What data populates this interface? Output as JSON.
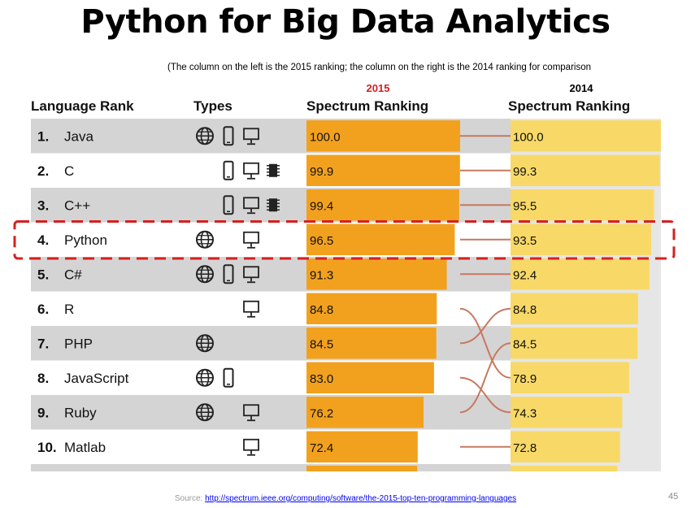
{
  "title": "Python for Big Data Analytics",
  "note": "(The column on the left is the 2015 ranking; the column on the right is the 2014 ranking for comparison",
  "source_label": "Source:",
  "source_url": "http://spectrum.ieee.org/computing/software/the-2015-top-ten-programming-languages",
  "page_number": "45",
  "chart_data": {
    "type": "bar",
    "headers": {
      "language": "Language Rank",
      "types": "Types",
      "col2015_year": "2015",
      "col2015": "Spectrum Ranking",
      "col2014_year": "2014",
      "col2014": "Spectrum Ranking"
    },
    "rows": [
      {
        "rank": "1.",
        "language": "Java",
        "types": [
          "web",
          "mobile",
          "desktop"
        ],
        "v2015": 100.0,
        "v2014": 100.0,
        "label2015": "100.0",
        "label2014": "100.0",
        "rank2014": 1
      },
      {
        "rank": "2.",
        "language": "C",
        "types": [
          "mobile",
          "desktop",
          "embedded"
        ],
        "v2015": 99.9,
        "v2014": 99.3,
        "label2015": "99.9",
        "label2014": "99.3",
        "rank2014": 2
      },
      {
        "rank": "3.",
        "language": "C++",
        "types": [
          "mobile",
          "desktop",
          "embedded"
        ],
        "v2015": 99.4,
        "v2014": 95.5,
        "label2015": "99.4",
        "label2014": "95.5",
        "rank2014": 3
      },
      {
        "rank": "4.",
        "language": "Python",
        "types": [
          "web",
          "desktop"
        ],
        "v2015": 96.5,
        "v2014": 93.5,
        "label2015": "96.5",
        "label2014": "93.5",
        "rank2014": 4
      },
      {
        "rank": "5.",
        "language": "C#",
        "types": [
          "web",
          "mobile",
          "desktop"
        ],
        "v2015": 91.3,
        "v2014": 92.4,
        "label2015": "91.3",
        "label2014": "92.4",
        "rank2014": 5
      },
      {
        "rank": "6.",
        "language": "R",
        "types": [
          "desktop"
        ],
        "v2015": 84.8,
        "v2014": 84.8,
        "label2015": "84.8",
        "label2014": "84.8",
        "rank2014": 6
      },
      {
        "rank": "7.",
        "language": "PHP",
        "types": [
          "web"
        ],
        "v2015": 84.5,
        "v2014": 84.5,
        "label2015": "84.5",
        "label2014": "84.5",
        "rank2014": 7
      },
      {
        "rank": "8.",
        "language": "JavaScript",
        "types": [
          "web",
          "mobile"
        ],
        "v2015": 83.0,
        "v2014": 78.9,
        "label2015": "83.0",
        "label2014": "78.9",
        "rank2014": 8
      },
      {
        "rank": "9.",
        "language": "Ruby",
        "types": [
          "web",
          "desktop"
        ],
        "v2015": 76.2,
        "v2014": 74.3,
        "label2015": "76.2",
        "label2014": "74.3",
        "rank2014": 9
      },
      {
        "rank": "10.",
        "language": "Matlab",
        "types": [
          "desktop"
        ],
        "v2015": 72.4,
        "v2014": 72.8,
        "label2015": "72.4",
        "label2014": "72.8",
        "rank2014": 10
      }
    ],
    "extra_2015_values": [
      72.0
    ],
    "extra_2014_values": [
      71.0
    ],
    "connectors": [
      {
        "from_row": 0,
        "to_row": 0
      },
      {
        "from_row": 1,
        "to_row": 1
      },
      {
        "from_row": 2,
        "to_row": 2
      },
      {
        "from_row": 3,
        "to_row": 3
      },
      {
        "from_row": 4,
        "to_row": 4
      },
      {
        "from_row": 5,
        "to_row": 7
      },
      {
        "from_row": 6,
        "to_row": 5
      },
      {
        "from_row": 7,
        "to_row": 8
      },
      {
        "from_row": 8,
        "to_row": 6
      },
      {
        "from_row": 9,
        "to_row": 9
      }
    ],
    "highlight_row": 3,
    "xlim": [
      0,
      100
    ],
    "colors": {
      "bar2015": "#f2a11e",
      "bar2014": "#f8d968",
      "track2014": "#e6e6e6",
      "connector": "#c87860",
      "highlight": "#d6201f",
      "row_odd": "#d4d4d4",
      "row_even": "#ffffff",
      "year2015": "#d6201f",
      "year2014": "#000000",
      "text": "#111111"
    }
  }
}
